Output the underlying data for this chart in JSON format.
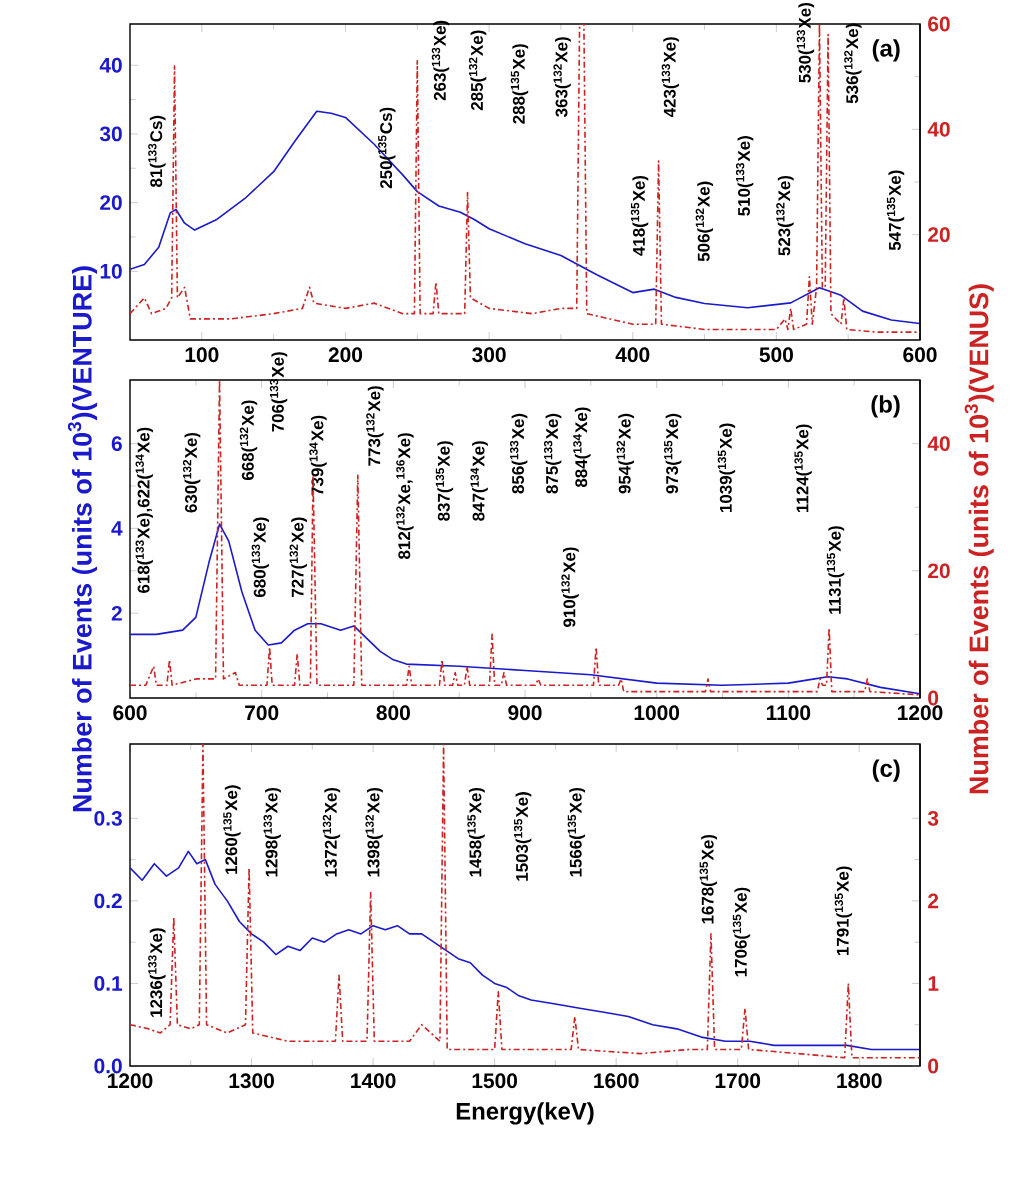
{
  "chart_data": [
    {
      "type": "line",
      "title": "(a)",
      "xlim": [
        50,
        600
      ],
      "xticks": [
        100,
        200,
        300,
        400,
        500,
        600
      ],
      "ylim": [
        0,
        46
      ],
      "yticks": [
        10,
        20,
        30,
        40
      ],
      "y2lim": [
        0,
        60
      ],
      "y2ticks": [
        20,
        40,
        60
      ],
      "series": [
        {
          "color": "#1a1acc",
          "x": [
            50,
            60,
            70,
            78,
            82,
            88,
            95,
            110,
            130,
            150,
            165,
            180,
            190,
            200,
            220,
            240,
            250,
            265,
            280,
            290,
            300,
            325,
            350,
            375,
            400,
            415,
            430,
            450,
            480,
            510,
            530,
            545,
            560,
            580,
            600
          ],
          "values": [
            10.3,
            11,
            13.5,
            18.5,
            19,
            17,
            16,
            17.5,
            20.6,
            24.5,
            29,
            33.3,
            33,
            32.4,
            28.5,
            24,
            21.6,
            19.5,
            18.6,
            17.5,
            16.2,
            14,
            12.3,
            9.5,
            6.9,
            7.4,
            6.2,
            5.3,
            4.7,
            5.4,
            7.6,
            6.5,
            4.2,
            2.9,
            2.4
          ]
        },
        {
          "color": "#cc2222",
          "axis": "y2",
          "line_style": "dashed",
          "x": [
            50,
            60,
            65,
            75,
            79,
            81,
            83,
            88,
            92,
            120,
            150,
            170,
            175,
            178,
            200,
            220,
            240,
            248,
            250,
            252,
            261,
            263,
            265,
            283,
            285,
            287,
            300,
            330,
            350,
            361,
            363,
            366,
            368,
            400,
            416,
            418,
            420,
            450,
            480,
            500,
            506,
            508,
            510,
            512,
            521,
            523,
            525,
            528,
            530,
            532,
            534,
            536,
            538,
            545,
            547,
            549,
            570,
            600
          ],
          "values": [
            5,
            8,
            5,
            6,
            8,
            52,
            8,
            10,
            4,
            4,
            5,
            6,
            10,
            7,
            6,
            7,
            5,
            5,
            53,
            5,
            5,
            11,
            5,
            5,
            28,
            8,
            6,
            5,
            6,
            6,
            60,
            60,
            5,
            3,
            3,
            34,
            3,
            2,
            2,
            2,
            4,
            2,
            6,
            2,
            3,
            12,
            3,
            10,
            60,
            10,
            10,
            58,
            5,
            3,
            8,
            2,
            1.5,
            1.5
          ]
        }
      ],
      "annotations": [
        "81($^{133}$Cs)",
        "250($^{135}$Cs)",
        "263($^{133}$Xe)",
        "285($^{132}$Xe)",
        "288($^{135}$Xe)",
        "363($^{132}$Xe)",
        "418($^{135}$Xe)",
        "423($^{133}$Xe)",
        "506($^{132}$Xe)",
        "510($^{133}$Xe)",
        "523($^{132}$Xe)",
        "530($^{133}$Xe)",
        "536($^{132}$Xe)",
        "547($^{135}$Xe)"
      ]
    },
    {
      "type": "line",
      "title": "(b)",
      "ylabel": "Number of Events (units of 10$^{3}$)(VENTURE)",
      "y2label": "Number of Events (units of 10$^{3}$)(VENUS)",
      "xlim": [
        600,
        1200
      ],
      "xticks": [
        600,
        700,
        800,
        900,
        1000,
        1100,
        1200
      ],
      "ylim": [
        0,
        7.5
      ],
      "yticks": [
        2,
        4,
        6
      ],
      "y2lim": [
        0,
        50
      ],
      "y2ticks": [
        0,
        20,
        40
      ],
      "series": [
        {
          "color": "#1a1acc",
          "x": [
            600,
            620,
            640,
            650,
            660,
            668,
            675,
            685,
            695,
            705,
            715,
            725,
            735,
            745,
            760,
            770,
            780,
            790,
            800,
            810,
            850,
            900,
            950,
            1000,
            1050,
            1100,
            1120,
            1130,
            1145,
            1170,
            1200
          ],
          "values": [
            1.5,
            1.5,
            1.6,
            1.9,
            3.2,
            4.1,
            3.7,
            2.5,
            1.6,
            1.25,
            1.3,
            1.6,
            1.75,
            1.75,
            1.6,
            1.7,
            1.4,
            1.1,
            0.9,
            0.8,
            0.75,
            0.65,
            0.55,
            0.35,
            0.3,
            0.35,
            0.45,
            0.5,
            0.45,
            0.25,
            0.1
          ]
        },
        {
          "color": "#cc2222",
          "axis": "y2",
          "line_style": "dashed",
          "x": [
            600,
            612,
            618,
            620,
            628,
            630,
            632,
            650,
            665,
            668,
            671,
            680,
            683,
            700,
            704,
            706,
            708,
            725,
            727,
            729,
            737,
            739,
            742,
            760,
            770,
            773,
            776,
            810,
            812,
            814,
            835,
            837,
            839,
            845,
            847,
            849,
            854,
            856,
            858,
            873,
            875,
            877,
            882,
            884,
            886,
            908,
            910,
            912,
            952,
            954,
            956,
            971,
            973,
            975,
            1037,
            1039,
            1041,
            1100,
            1122,
            1124,
            1126,
            1129,
            1131,
            1133,
            1158,
            1160,
            1162,
            1200
          ],
          "values": [
            2,
            2,
            5,
            2,
            2,
            6,
            2,
            3,
            3,
            50,
            3,
            4,
            2,
            2,
            2,
            8,
            2,
            2,
            7,
            2,
            2,
            35,
            2,
            2,
            2,
            35,
            2,
            2,
            5,
            2,
            2,
            6,
            2,
            2,
            4,
            2,
            2,
            5,
            2,
            2,
            10,
            2,
            2,
            4,
            2,
            2,
            3,
            2,
            2,
            8,
            2,
            2,
            3,
            1,
            1,
            3,
            1,
            1,
            1,
            3,
            2,
            2,
            11,
            1,
            1,
            3,
            1,
            0.5
          ]
        }
      ],
      "annotations": [
        "618($^{133}$Xe),622($^{134}$Xe)",
        "630($^{132}$Xe)",
        "668($^{132}$Xe)",
        "680($^{133}$Xe)",
        "706($^{133}$Xe)",
        "727($^{132}$Xe)",
        "739($^{134}$Xe)",
        "773($^{132}$Xe)",
        "812($^{132}$Xe,$^{136}$Xe)",
        "837($^{135}$Xe)",
        "847($^{134}$Xe)",
        "856($^{133}$Xe)",
        "875($^{133}$Xe)",
        "884($^{134}$Xe)",
        "910($^{132}$Xe)",
        "954($^{132}$Xe)",
        "973($^{135}$Xe)",
        "1039($^{135}$Xe)",
        "1124($^{135}$Xe)",
        "1131($^{135}$Xe)"
      ]
    },
    {
      "type": "line",
      "title": "(c)",
      "xlabel": "Energy(keV)",
      "xlim": [
        1200,
        1850
      ],
      "xticks": [
        1200,
        1300,
        1400,
        1500,
        1600,
        1700,
        1800
      ],
      "ylim": [
        0,
        0.39
      ],
      "yticks": [
        {
          "value": 0,
          "label": "0.0"
        },
        0.1,
        0.2,
        0.3
      ],
      "y2lim": [
        0,
        3.9
      ],
      "y2ticks": [
        0,
        1,
        2,
        3
      ],
      "series": [
        {
          "color": "#1a1acc",
          "x": [
            1200,
            1210,
            1220,
            1230,
            1240,
            1248,
            1255,
            1262,
            1270,
            1280,
            1290,
            1300,
            1310,
            1320,
            1330,
            1340,
            1350,
            1360,
            1370,
            1380,
            1390,
            1400,
            1410,
            1420,
            1430,
            1440,
            1450,
            1460,
            1470,
            1480,
            1490,
            1500,
            1510,
            1520,
            1530,
            1550,
            1570,
            1590,
            1610,
            1630,
            1650,
            1670,
            1690,
            1710,
            1730,
            1750,
            1770,
            1790,
            1810,
            1830,
            1850
          ],
          "values": [
            0.24,
            0.225,
            0.245,
            0.23,
            0.24,
            0.26,
            0.245,
            0.25,
            0.22,
            0.2,
            0.175,
            0.16,
            0.15,
            0.135,
            0.145,
            0.14,
            0.155,
            0.15,
            0.16,
            0.165,
            0.16,
            0.17,
            0.165,
            0.17,
            0.16,
            0.16,
            0.15,
            0.14,
            0.13,
            0.125,
            0.11,
            0.1,
            0.095,
            0.085,
            0.08,
            0.075,
            0.07,
            0.065,
            0.06,
            0.05,
            0.045,
            0.035,
            0.03,
            0.03,
            0.025,
            0.025,
            0.025,
            0.025,
            0.02,
            0.02,
            0.02
          ]
        },
        {
          "color": "#cc2222",
          "axis": "y2",
          "line_style": "dashed",
          "x": [
            1200,
            1215,
            1225,
            1233,
            1236,
            1239,
            1250,
            1257,
            1260,
            1263,
            1280,
            1295,
            1298,
            1301,
            1330,
            1360,
            1369,
            1372,
            1375,
            1395,
            1398,
            1401,
            1430,
            1440,
            1455,
            1458,
            1461,
            1480,
            1500,
            1503,
            1506,
            1540,
            1563,
            1566,
            1569,
            1620,
            1660,
            1675,
            1678,
            1681,
            1703,
            1706,
            1709,
            1750,
            1788,
            1791,
            1794,
            1850
          ],
          "values": [
            0.5,
            0.45,
            0.4,
            0.5,
            1.8,
            0.5,
            0.45,
            0.5,
            3.9,
            0.5,
            0.4,
            0.5,
            2.4,
            0.4,
            0.3,
            0.3,
            0.3,
            1.1,
            0.3,
            0.3,
            2.1,
            0.3,
            0.3,
            0.5,
            0.3,
            3.9,
            0.2,
            0.2,
            0.2,
            0.9,
            0.2,
            0.2,
            0.2,
            0.6,
            0.2,
            0.15,
            0.2,
            0.2,
            1.6,
            0.2,
            0.2,
            0.7,
            0.2,
            0.15,
            0.1,
            1.0,
            0.1,
            0.1
          ]
        }
      ],
      "annotations": [
        "1236($^{133}$Xe)",
        "1260($^{135}$Xe)",
        "1298($^{133}$Xe)",
        "1372($^{132}$Xe)",
        "1398($^{132}$Xe)",
        "1458($^{135}$Xe)",
        "1503($^{135}$Xe)",
        "1566($^{135}$Xe)",
        "1678($^{135}$Xe)",
        "1706($^{135}$Xe)",
        "1791($^{135}$Xe)"
      ]
    }
  ]
}
